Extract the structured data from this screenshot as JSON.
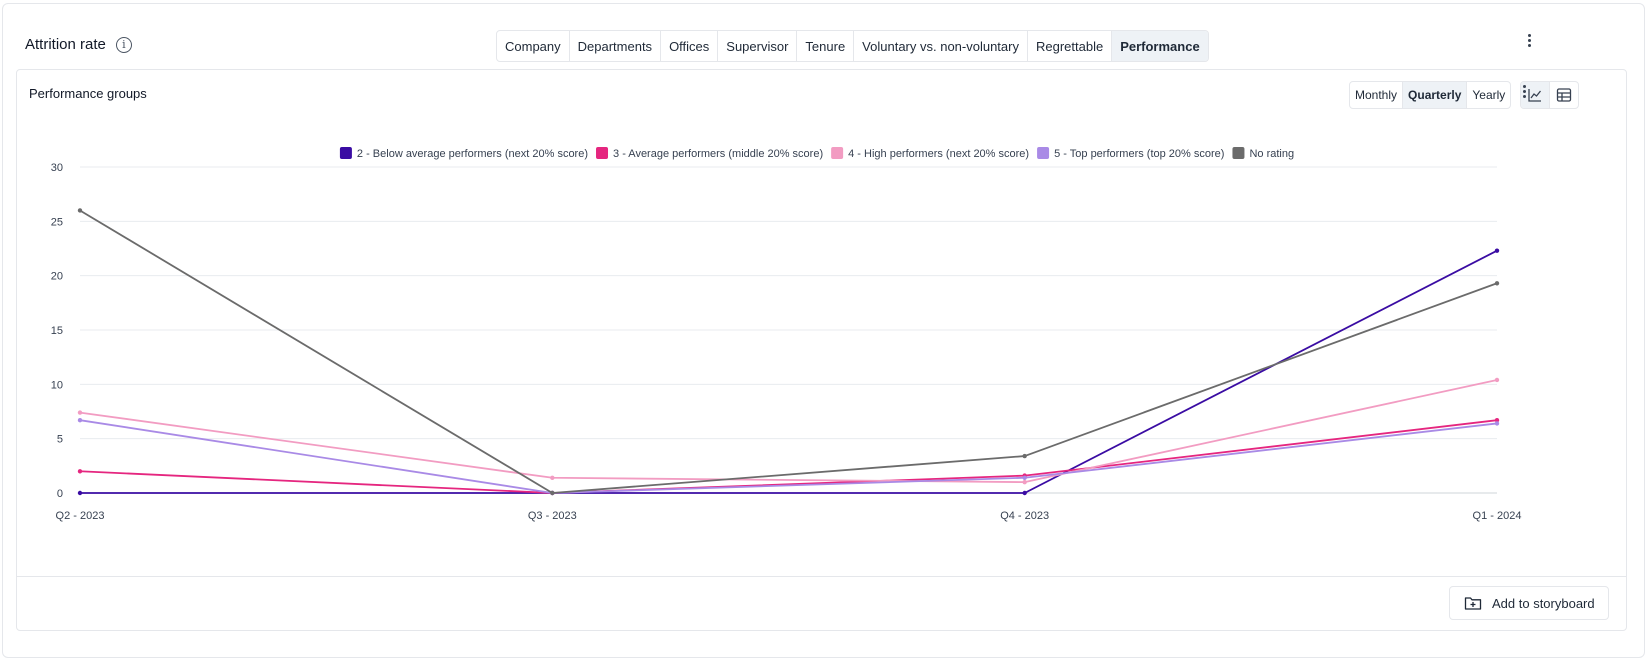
{
  "header": {
    "title": "Attrition rate",
    "tabs": [
      "Company",
      "Departments",
      "Offices",
      "Supervisor",
      "Tenure",
      "Voluntary vs. non-voluntary",
      "Regrettable",
      "Performance"
    ],
    "active_tab": "Performance"
  },
  "card": {
    "title": "Performance groups",
    "periods": [
      "Monthly",
      "Quarterly",
      "Yearly"
    ],
    "active_period": "Quarterly",
    "storyboard_label": "Add to storyboard"
  },
  "chart_data": {
    "type": "line",
    "title": "",
    "xlabel": "",
    "ylabel": "",
    "categories": [
      "Q2 - 2023",
      "Q3 - 2023",
      "Q4 - 2023",
      "Q1 - 2024"
    ],
    "ylim": [
      0,
      30
    ],
    "yticks": [
      0,
      5,
      10,
      15,
      20,
      25,
      30
    ],
    "grid": true,
    "legend_position": "top",
    "series": [
      {
        "name": "2 - Below average performers (next 20% score)",
        "color": "#3a0ca3",
        "values": [
          0,
          0,
          0,
          22.3
        ]
      },
      {
        "name": "3 - Average performers (middle 20% score)",
        "color": "#e5267f",
        "values": [
          2.0,
          0,
          1.6,
          6.7
        ]
      },
      {
        "name": "4 - High performers (next 20% score)",
        "color": "#f29cc2",
        "values": [
          7.4,
          1.4,
          1.0,
          10.4
        ]
      },
      {
        "name": "5 - Top performers (top 20% score)",
        "color": "#a98ae6",
        "values": [
          6.7,
          0,
          1.4,
          6.4
        ]
      },
      {
        "name": "No rating",
        "color": "#6b6b6b",
        "values": [
          26.0,
          0,
          3.4,
          19.3
        ]
      }
    ]
  }
}
